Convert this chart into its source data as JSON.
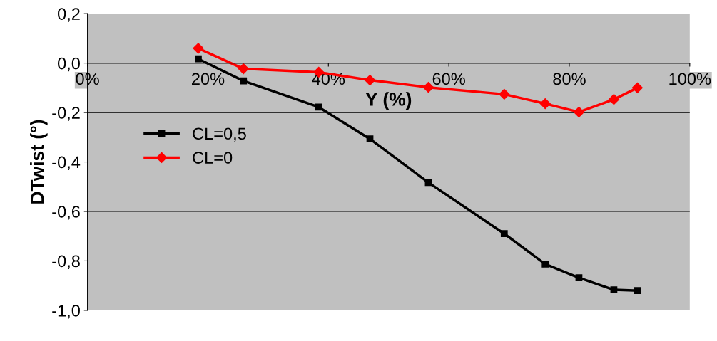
{
  "chart_data": {
    "type": "line",
    "xlabel": "Y (%)",
    "ylabel": "DTwist (°)",
    "xlim": [
      0,
      100
    ],
    "xticks": [
      {
        "value": 0,
        "label": "0%"
      },
      {
        "value": 20,
        "label": "20%"
      },
      {
        "value": 40,
        "label": "40%"
      },
      {
        "value": 60,
        "label": "60%"
      },
      {
        "value": 80,
        "label": "80%"
      },
      {
        "value": 100,
        "label": "100%"
      }
    ],
    "ylim": [
      -1.0,
      0.2
    ],
    "yticks": [
      {
        "value": -1.0,
        "label": "-1,0"
      },
      {
        "value": -0.8,
        "label": "-0,8"
      },
      {
        "value": -0.6,
        "label": "-0,6"
      },
      {
        "value": -0.4,
        "label": "-0,4"
      },
      {
        "value": -0.2,
        "label": "-0,2"
      },
      {
        "value": 0.0,
        "label": "0,0"
      },
      {
        "value": 0.2,
        "label": "0,2"
      }
    ],
    "grid": "y",
    "legend": "left",
    "series": [
      {
        "name": "CL=0,5",
        "color": "#000000",
        "marker": "square",
        "x": [
          18.4,
          25.9,
          38.4,
          46.9,
          56.6,
          69.2,
          76.0,
          81.6,
          87.4,
          91.3
        ],
        "values": [
          0.017,
          -0.072,
          -0.178,
          -0.307,
          -0.483,
          -0.69,
          -0.813,
          -0.868,
          -0.917,
          -0.92
        ]
      },
      {
        "name": "CL=0",
        "color": "#ff0000",
        "marker": "diamond",
        "x": [
          18.4,
          25.9,
          38.4,
          46.9,
          56.6,
          69.2,
          76.0,
          81.6,
          87.4,
          91.3
        ],
        "values": [
          0.06,
          -0.023,
          -0.037,
          -0.069,
          -0.098,
          -0.126,
          -0.164,
          -0.198,
          -0.147,
          -0.1
        ]
      }
    ]
  }
}
